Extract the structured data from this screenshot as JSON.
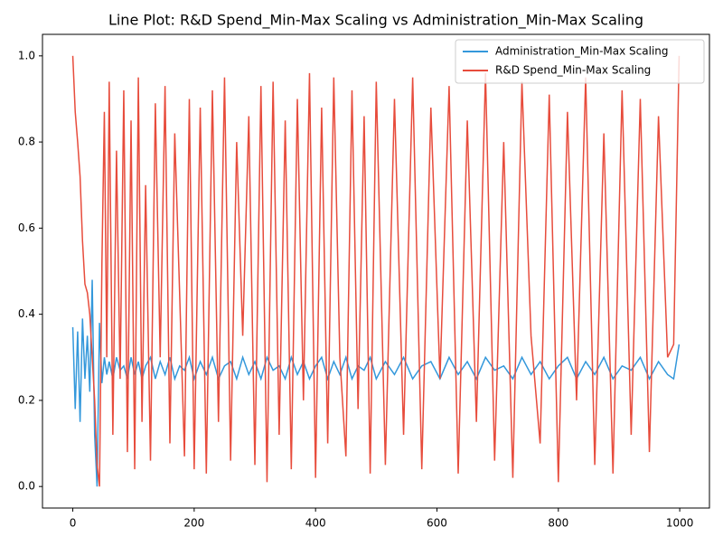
{
  "chart_data": {
    "type": "line",
    "title": "Line Plot: R&D Spend_Min-Max Scaling vs Administration_Min-Max Scaling",
    "x": [
      0,
      4,
      8,
      12,
      16,
      20,
      24,
      28,
      32,
      36,
      40,
      44,
      48,
      52,
      56,
      60,
      66,
      72,
      78,
      84,
      90,
      96,
      102,
      108,
      114,
      120,
      128,
      136,
      144,
      152,
      160,
      168,
      176,
      184,
      192,
      200,
      210,
      220,
      230,
      240,
      250,
      260,
      270,
      280,
      290,
      300,
      310,
      320,
      330,
      340,
      350,
      360,
      370,
      380,
      390,
      400,
      410,
      420,
      430,
      440,
      450,
      460,
      470,
      480,
      490,
      500,
      515,
      530,
      545,
      560,
      575,
      590,
      605,
      620,
      635,
      650,
      665,
      680,
      695,
      710,
      725,
      740,
      755,
      770,
      785,
      800,
      815,
      830,
      845,
      860,
      875,
      890,
      905,
      920,
      935,
      950,
      965,
      980,
      990,
      999
    ],
    "series": [
      {
        "name": "Administration_Min-Max Scaling",
        "color": "#3498db",
        "values": [
          0.37,
          0.18,
          0.36,
          0.15,
          0.39,
          0.25,
          0.35,
          0.22,
          0.48,
          0.12,
          0.0,
          0.38,
          0.24,
          0.3,
          0.26,
          0.29,
          0.25,
          0.3,
          0.27,
          0.28,
          0.25,
          0.3,
          0.26,
          0.29,
          0.25,
          0.28,
          0.3,
          0.25,
          0.29,
          0.26,
          0.3,
          0.25,
          0.28,
          0.27,
          0.3,
          0.25,
          0.29,
          0.26,
          0.3,
          0.25,
          0.28,
          0.29,
          0.25,
          0.3,
          0.26,
          0.29,
          0.25,
          0.3,
          0.27,
          0.28,
          0.25,
          0.3,
          0.26,
          0.29,
          0.25,
          0.28,
          0.3,
          0.25,
          0.29,
          0.26,
          0.3,
          0.25,
          0.28,
          0.27,
          0.3,
          0.25,
          0.29,
          0.26,
          0.3,
          0.25,
          0.28,
          0.29,
          0.25,
          0.3,
          0.26,
          0.29,
          0.25,
          0.3,
          0.27,
          0.28,
          0.25,
          0.3,
          0.26,
          0.29,
          0.25,
          0.28,
          0.3,
          0.25,
          0.29,
          0.26,
          0.3,
          0.25,
          0.28,
          0.27,
          0.3,
          0.25,
          0.29,
          0.26,
          0.25,
          0.33
        ]
      },
      {
        "name": "R&D Spend_Min-Max Scaling",
        "color": "#e74c3c",
        "values": [
          1.0,
          0.87,
          0.8,
          0.72,
          0.57,
          0.47,
          0.45,
          0.4,
          0.3,
          0.2,
          0.05,
          0.0,
          0.52,
          0.87,
          0.3,
          0.94,
          0.12,
          0.78,
          0.25,
          0.92,
          0.08,
          0.85,
          0.04,
          0.95,
          0.15,
          0.7,
          0.06,
          0.89,
          0.3,
          0.93,
          0.1,
          0.82,
          0.45,
          0.07,
          0.9,
          0.04,
          0.88,
          0.03,
          0.92,
          0.15,
          0.95,
          0.06,
          0.8,
          0.35,
          0.86,
          0.05,
          0.93,
          0.01,
          0.94,
          0.12,
          0.85,
          0.04,
          0.9,
          0.2,
          0.96,
          0.02,
          0.88,
          0.1,
          0.95,
          0.3,
          0.07,
          0.92,
          0.18,
          0.86,
          0.03,
          0.94,
          0.05,
          0.9,
          0.12,
          0.95,
          0.04,
          0.88,
          0.25,
          0.93,
          0.03,
          0.85,
          0.15,
          0.96,
          0.06,
          0.8,
          0.02,
          0.94,
          0.35,
          0.1,
          0.91,
          0.01,
          0.87,
          0.2,
          0.95,
          0.05,
          0.82,
          0.03,
          0.92,
          0.12,
          0.9,
          0.08,
          0.86,
          0.3,
          0.33,
          1.0
        ]
      }
    ],
    "xlim": [
      -49.95,
      1048.95
    ],
    "ylim": [
      -0.05,
      1.05
    ],
    "xticks": [
      0,
      200,
      400,
      600,
      800,
      1000
    ],
    "yticks": [
      {
        "value": 0,
        "label": "0.0"
      },
      0.2,
      0.4,
      0.6,
      0.8,
      {
        "value": 1,
        "label": "1.0"
      }
    ],
    "grid": false,
    "legend": "upper right"
  }
}
